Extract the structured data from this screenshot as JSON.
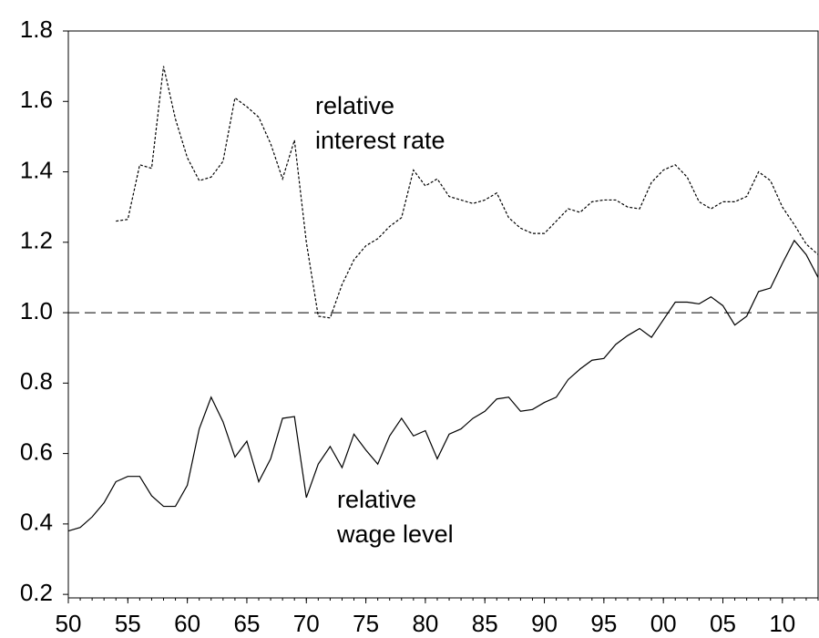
{
  "chart_data": {
    "type": "line",
    "x": [
      1950,
      1951,
      1952,
      1953,
      1954,
      1955,
      1956,
      1957,
      1958,
      1959,
      1960,
      1961,
      1962,
      1963,
      1964,
      1965,
      1966,
      1967,
      1968,
      1969,
      1970,
      1971,
      1972,
      1973,
      1974,
      1975,
      1976,
      1977,
      1978,
      1979,
      1980,
      1981,
      1982,
      1983,
      1984,
      1985,
      1986,
      1987,
      1988,
      1989,
      1990,
      1991,
      1992,
      1993,
      1994,
      1995,
      1996,
      1997,
      1998,
      1999,
      2000,
      2001,
      2002,
      2003,
      2004,
      2005,
      2006,
      2007,
      2008,
      2009,
      2010,
      2011,
      2012,
      2013
    ],
    "series": [
      {
        "color": "#000000",
        "dash": "dotted",
        "values": [
          null,
          null,
          null,
          null,
          1.26,
          1.265,
          1.42,
          1.41,
          1.7,
          1.55,
          1.44,
          1.375,
          1.385,
          1.43,
          1.61,
          1.585,
          1.555,
          1.48,
          1.38,
          1.49,
          1.2,
          0.99,
          0.985,
          1.08,
          1.15,
          1.19,
          1.21,
          1.245,
          1.27,
          1.405,
          1.36,
          1.38,
          1.33,
          1.32,
          1.31,
          1.32,
          1.34,
          1.27,
          1.24,
          1.225,
          1.225,
          1.26,
          1.295,
          1.285,
          1.315,
          1.32,
          1.32,
          1.3,
          1.295,
          1.37,
          1.405,
          1.42,
          1.385,
          1.315,
          1.295,
          1.315,
          1.315,
          1.33,
          1.4,
          1.375,
          1.3,
          1.25,
          1.195,
          1.165
        ]
      },
      {
        "color": "#000000",
        "dash": "solid",
        "values": [
          0.38,
          0.39,
          0.42,
          0.46,
          0.52,
          0.535,
          0.535,
          0.48,
          0.45,
          0.45,
          0.51,
          0.67,
          0.76,
          0.69,
          0.59,
          0.635,
          0.52,
          0.585,
          0.7,
          0.705,
          0.475,
          0.57,
          0.62,
          0.56,
          0.655,
          0.61,
          0.57,
          0.65,
          0.7,
          0.65,
          0.665,
          0.585,
          0.655,
          0.67,
          0.7,
          0.72,
          0.755,
          0.76,
          0.72,
          0.725,
          0.745,
          0.76,
          0.81,
          0.84,
          0.865,
          0.87,
          0.91,
          0.935,
          0.955,
          0.93,
          0.98,
          1.03,
          1.03,
          1.025,
          1.045,
          1.02,
          0.965,
          0.99,
          1.06,
          1.07,
          1.14,
          1.205,
          1.165,
          1.1
        ]
      }
    ],
    "annotations": [
      [
        "relative",
        "interest rate"
      ],
      [
        "relative",
        "wage level"
      ]
    ],
    "hline": {
      "value": 1,
      "dash": "dashed"
    },
    "xlim": [
      1950,
      2013
    ],
    "ylim": [
      0.19,
      1.8
    ],
    "xticks": [
      {
        "value": 1950,
        "label": "50"
      },
      {
        "value": 1955,
        "label": "55"
      },
      {
        "value": 1960,
        "label": "60"
      },
      {
        "value": 1965,
        "label": "65"
      },
      {
        "value": 1970,
        "label": "70"
      },
      {
        "value": 1975,
        "label": "75"
      },
      {
        "value": 1980,
        "label": "80"
      },
      {
        "value": 1985,
        "label": "85"
      },
      {
        "value": 1990,
        "label": "90"
      },
      {
        "value": 1995,
        "label": "95"
      },
      {
        "value": 2000,
        "label": "00"
      },
      {
        "value": 2005,
        "label": "05"
      },
      {
        "value": 2010,
        "label": "10"
      }
    ],
    "yticks": [
      0.2,
      0.4,
      0.6,
      0.8,
      {
        "value": 1,
        "label": "1.0"
      },
      1.2,
      1.4,
      1.6,
      1.8
    ],
    "grid": false
  }
}
